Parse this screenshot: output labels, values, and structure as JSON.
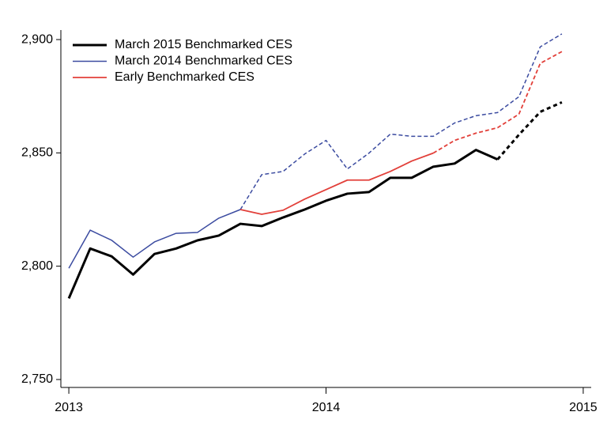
{
  "chart_data": {
    "type": "line",
    "x": [
      2013,
      2013.083,
      2013.167,
      2013.25,
      2013.333,
      2013.417,
      2013.5,
      2013.583,
      2013.667,
      2013.75,
      2013.833,
      2013.917,
      2014,
      2014.083,
      2014.167,
      2014.25,
      2014.333,
      2014.417,
      2014.5,
      2014.583,
      2014.667,
      2014.75,
      2014.833,
      2014.917
    ],
    "series": [
      {
        "name": "March 2015 Benchmarked CES",
        "color": "#000000",
        "width": 3,
        "dashed_from": 20,
        "values": [
          2785.8,
          2807.8,
          2804.3,
          2796.3,
          2805.4,
          2807.8,
          2811.4,
          2813.5,
          2818.7,
          2817.7,
          2821.5,
          2825.0,
          2828.9,
          2832.0,
          2832.7,
          2839.0,
          2839.0,
          2843.9,
          2845.3,
          2851.3,
          2847.1,
          2858.0,
          2868.1,
          2872.3
        ]
      },
      {
        "name": "March 2014 Benchmarked CES",
        "color": "#3b4ba0",
        "width": 1.5,
        "dashed_from": 8,
        "values": [
          2799.1,
          2815.9,
          2811.4,
          2804.0,
          2810.7,
          2814.5,
          2814.9,
          2821.2,
          2825.0,
          2840.4,
          2841.8,
          2849.5,
          2855.5,
          2842.9,
          2849.9,
          2858.3,
          2857.3,
          2857.3,
          2863.2,
          2866.4,
          2867.8,
          2874.8,
          2896.8,
          2902.5
        ]
      },
      {
        "name": "Early Benchmarked CES",
        "color": "#e2403a",
        "width": 1.8,
        "dashed_from": 17,
        "values": [
          null,
          null,
          null,
          null,
          null,
          null,
          null,
          null,
          2825.0,
          2822.9,
          2824.7,
          2829.6,
          2833.8,
          2838.0,
          2838.0,
          2841.8,
          2846.4,
          2849.9,
          2855.5,
          2858.7,
          2861.1,
          2867.1,
          2889.5,
          2894.7
        ]
      }
    ],
    "xlim": [
      2012.969,
      2015.031
    ],
    "xticks": [
      2013,
      2014,
      2015
    ],
    "ylim": [
      2746.5,
      2904.2
    ],
    "yticks": [
      {
        "value": 2750,
        "label": "2,750"
      },
      {
        "value": 2800,
        "label": "2,800"
      },
      {
        "value": 2850,
        "label": "2,850"
      },
      {
        "value": 2900,
        "label": "2,900"
      }
    ],
    "legend": "upper-left"
  }
}
